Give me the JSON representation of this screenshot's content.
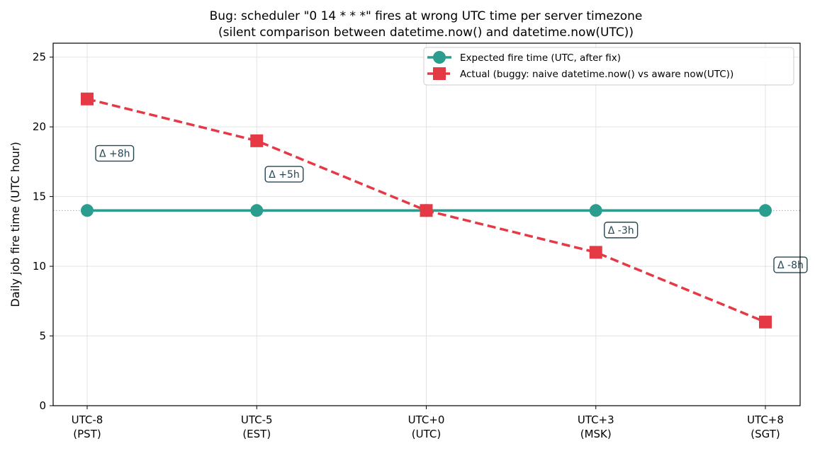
{
  "colors": {
    "expected": "#2a9d8f",
    "actual": "#e63946",
    "annotation": "#264653"
  },
  "chart_data": {
    "type": "line",
    "title": "Bug: scheduler \"0 14 * * *\" fires at wrong UTC time per server timezone",
    "subtitle": "(silent comparison between datetime.now() and datetime.now(UTC))",
    "xlabel": "",
    "ylabel": "Daily job fire time (UTC hour)",
    "categories": [
      [
        "UTC-8",
        "(PST)"
      ],
      [
        "UTC-5",
        "(EST)"
      ],
      [
        "UTC+0",
        "(UTC)"
      ],
      [
        "UTC+3",
        "(MSK)"
      ],
      [
        "UTC+8",
        "(SGT)"
      ]
    ],
    "ylim": [
      0,
      26
    ],
    "yticks": [
      0,
      5,
      10,
      15,
      20,
      25
    ],
    "grid": true,
    "legend_position": "top-right",
    "series": [
      {
        "name": "Expected fire time (UTC, after fix)",
        "values": [
          14,
          14,
          14,
          14,
          14
        ],
        "marker": "circle",
        "linestyle": "solid",
        "color": "#2a9d8f"
      },
      {
        "name": "Actual (buggy: naive datetime.now() vs aware now(UTC))",
        "values": [
          22,
          19,
          14,
          11,
          6
        ],
        "marker": "square",
        "linestyle": "dashed",
        "color": "#e63946"
      }
    ],
    "reference_line": {
      "y": 14,
      "style": "dotted"
    },
    "annotations": [
      {
        "text": "Δ +8h",
        "category_index": 0,
        "y": 18.1
      },
      {
        "text": "Δ +5h",
        "category_index": 1,
        "y": 16.6
      },
      {
        "text": "Δ -3h",
        "category_index": 3,
        "y": 12.6
      },
      {
        "text": "Δ -8h",
        "category_index": 4,
        "y": 10.1
      }
    ]
  }
}
